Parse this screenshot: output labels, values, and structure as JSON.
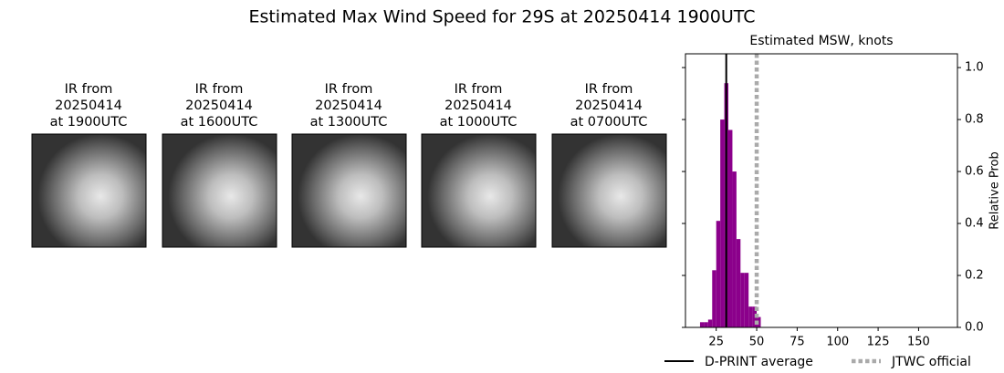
{
  "title": "Estimated Max Wind Speed for 29S at 20250414 1900UTC",
  "panels": [
    {
      "title_lines": [
        "IR from",
        "20250414",
        "at 1900UTC"
      ]
    },
    {
      "title_lines": [
        "IR from",
        "20250414",
        "at 1600UTC"
      ]
    },
    {
      "title_lines": [
        "IR from",
        "20250414",
        "at 1300UTC"
      ]
    },
    {
      "title_lines": [
        "IR from",
        "20250414",
        "at 1000UTC"
      ]
    },
    {
      "title_lines": [
        "IR from",
        "20250414",
        "at 0700UTC"
      ]
    }
  ],
  "chart_data": {
    "type": "histogram",
    "title": "Estimated MSW, knots",
    "y_label": "Relative Prob",
    "bins": [
      15,
      17.5,
      20,
      22.5,
      25,
      27.5,
      30,
      32.5,
      35,
      37.5,
      40,
      42.5,
      45,
      47.5,
      50,
      52.5
    ],
    "values": [
      0.02,
      0.02,
      0.03,
      0.22,
      0.41,
      0.8,
      0.94,
      0.76,
      0.6,
      0.34,
      0.21,
      0.21,
      0.08,
      0.08,
      0.04
    ],
    "color": "#8b008b",
    "xlim": [
      6,
      174
    ],
    "ylim": [
      0,
      1.053
    ],
    "xticks": [
      25,
      50,
      75,
      100,
      125,
      150
    ],
    "yticks": [
      {
        "value": 0,
        "label": "0.0"
      },
      0.2,
      0.4,
      0.6,
      0.8,
      {
        "value": 1,
        "label": "1.0"
      }
    ],
    "lines": [
      {
        "name": "D-PRINT average",
        "x": 31.2,
        "color": "#000000",
        "style": "solid"
      },
      {
        "name": "JTWC official",
        "x": 50,
        "color": "#aaaaaa",
        "style": "dotted"
      }
    ]
  }
}
